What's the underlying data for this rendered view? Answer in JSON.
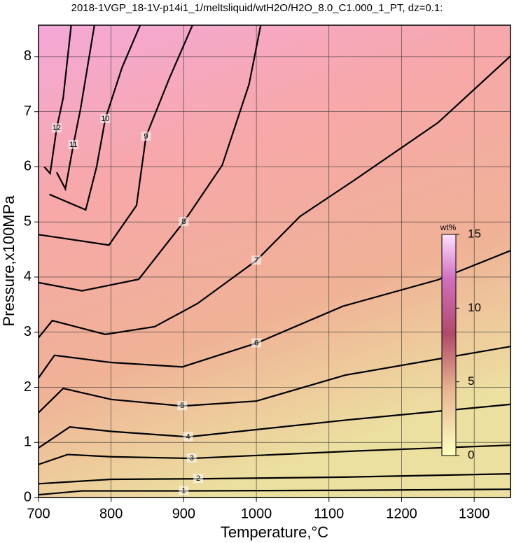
{
  "chart_data": {
    "type": "contour",
    "title": "2018-1VGP_18-1V-p14i1_1/meltsliquid/wtH2O/H2O_8.0_C1.000_1_PT, dz=0.1:",
    "xlabel": "Temperature,°C",
    "ylabel": "Pressure,x100MPa",
    "xlim": [
      700,
      1350
    ],
    "ylim": [
      0,
      8.57
    ],
    "xticks": [
      700,
      800,
      900,
      1000,
      1100,
      1200,
      1300
    ],
    "yticks": [
      0,
      1,
      2,
      3,
      4,
      5,
      6,
      7,
      8
    ],
    "grid": true,
    "line_color": "#000000",
    "colorbar": {
      "label": "wt%",
      "lim": [
        0,
        15
      ],
      "ticks": [
        0,
        5,
        10,
        15
      ]
    },
    "series": [
      {
        "name": "1",
        "x": [
          700,
          760,
          900,
          1120,
          1350
        ],
        "values": [
          0.05,
          0.12,
          0.12,
          0.13,
          0.15
        ]
      },
      {
        "name": "2",
        "x": [
          700,
          800,
          920,
          1120,
          1350
        ],
        "values": [
          0.25,
          0.33,
          0.34,
          0.37,
          0.43
        ]
      },
      {
        "name": "3",
        "x": [
          700,
          740,
          800,
          911,
          1129,
          1350
        ],
        "values": [
          0.6,
          0.78,
          0.74,
          0.71,
          0.84,
          0.95
        ]
      },
      {
        "name": "4",
        "x": [
          700,
          743,
          800,
          906,
          1127,
          1350
        ],
        "values": [
          0.9,
          1.28,
          1.2,
          1.1,
          1.41,
          1.69
        ]
      },
      {
        "name": "5",
        "x": [
          700,
          734,
          800,
          898,
          1000,
          1122,
          1350
        ],
        "values": [
          1.54,
          1.98,
          1.78,
          1.66,
          1.75,
          2.22,
          2.74
        ]
      },
      {
        "name": "6",
        "x": [
          700,
          722,
          800,
          898,
          1000,
          1119,
          1250,
          1350
        ],
        "values": [
          2.17,
          2.58,
          2.45,
          2.37,
          2.8,
          3.47,
          3.95,
          4.48
        ]
      },
      {
        "name": "7",
        "x": [
          700,
          719,
          792,
          860,
          919,
          1000,
          1060,
          1134,
          1250,
          1350
        ],
        "values": [
          2.9,
          3.21,
          2.96,
          3.1,
          3.52,
          4.3,
          5.1,
          5.75,
          6.8,
          8.01
        ]
      },
      {
        "name": "8",
        "x": [
          700,
          760,
          838,
          900,
          953,
          990,
          1006
        ],
        "values": [
          3.9,
          3.75,
          3.96,
          5.0,
          6.03,
          7.5,
          8.57
        ]
      },
      {
        "name": "9",
        "x": [
          700,
          797,
          835,
          848,
          880,
          912
        ],
        "values": [
          4.77,
          4.58,
          5.3,
          6.55,
          7.6,
          8.57
        ]
      },
      {
        "name": "10",
        "x": [
          715,
          765,
          780,
          792,
          815,
          840
        ],
        "values": [
          5.5,
          5.22,
          6.0,
          6.87,
          7.8,
          8.57
        ]
      },
      {
        "name": "11",
        "x": [
          725,
          737,
          748,
          758,
          777
        ],
        "values": [
          5.9,
          5.6,
          6.4,
          7.06,
          8.57
        ]
      },
      {
        "name": "12",
        "x": [
          708,
          716,
          725,
          734,
          745
        ],
        "values": [
          6.0,
          5.88,
          6.7,
          7.25,
          8.57
        ]
      }
    ]
  }
}
